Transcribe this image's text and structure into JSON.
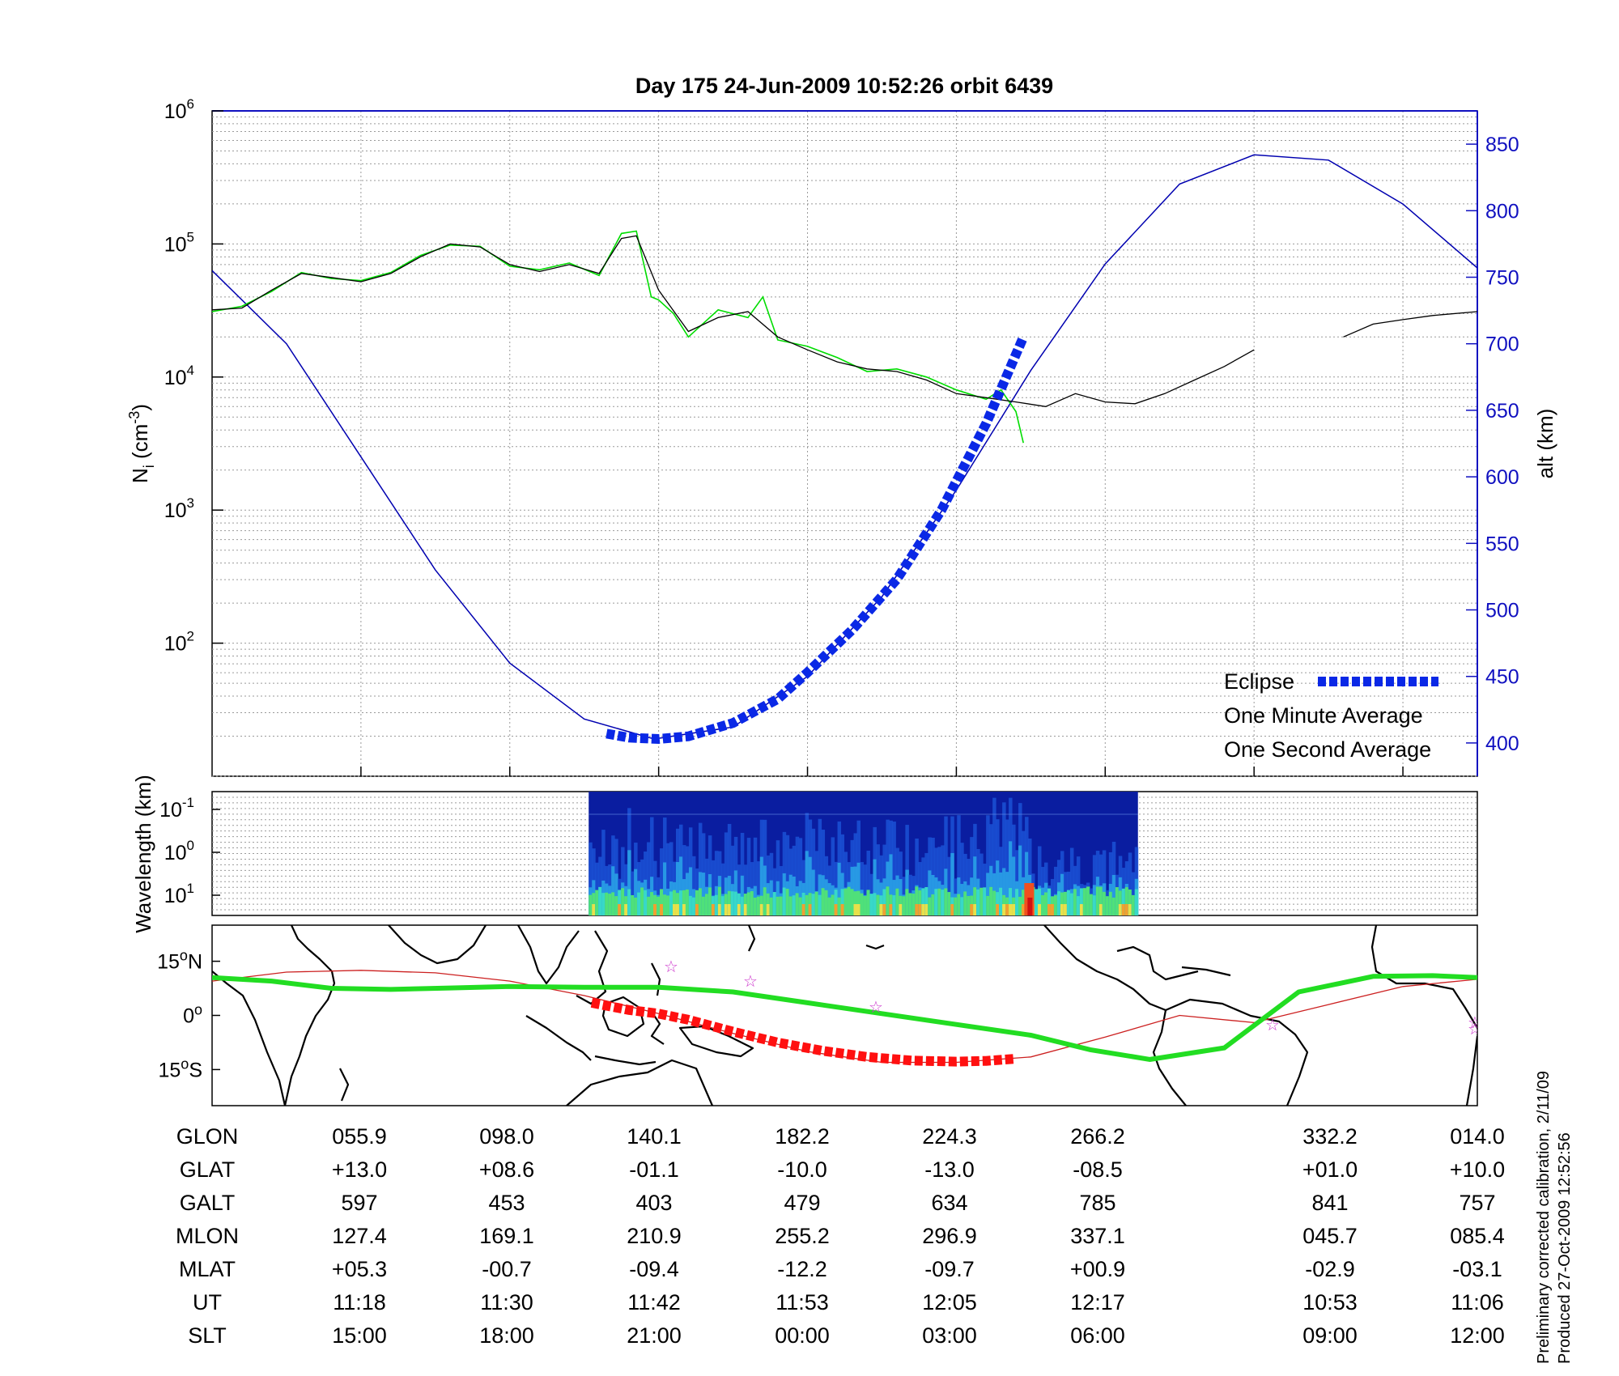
{
  "title": "Day 175  24-Jun-2009 10:52:26   orbit 6439",
  "colors": {
    "altitude": "#0000b0",
    "eclipse": "#0a28e6",
    "one_minute": "#000000",
    "one_second": "#00dd00",
    "track": "#22dd22",
    "eclipse_track": "#ff1010",
    "track_thin": "#cc2020",
    "stars": "#cc33cc",
    "right_axis": "#1010c0"
  },
  "legend": {
    "eclipse": "Eclipse",
    "one_minute": "One Minute Average",
    "one_second": "One Second Average"
  },
  "top_panel": {
    "ylabel_main": "N",
    "ylabel_sub": "i",
    "ylabel_unit_pre": " (cm",
    "ylabel_unit_exp": "-3",
    "ylabel_unit_post": ")",
    "right_label": "alt (km)",
    "y_ticks_base": [
      "10",
      "10",
      "10",
      "10",
      "10"
    ],
    "y_ticks_exp": [
      "6",
      "5",
      "4",
      "3",
      "2"
    ],
    "right_ticks": [
      "850",
      "800",
      "750",
      "700",
      "650",
      "600",
      "550",
      "500",
      "450",
      "400"
    ]
  },
  "mid_panel": {
    "ylabel": "Wavelength (km)",
    "y_ticks_base": [
      "10",
      "10",
      "10"
    ],
    "y_ticks_exp": [
      "-1",
      "0",
      "1"
    ]
  },
  "map_panel": {
    "y_ticks_value": [
      "15",
      "0",
      "15"
    ],
    "y_ticks_hemi": [
      "N",
      "",
      "S"
    ]
  },
  "table": {
    "row_labels": [
      "GLON",
      "GLAT",
      "GALT",
      "MLON",
      "MLAT",
      "UT",
      "SLT"
    ],
    "columns": [
      [
        "055.9",
        "+13.0",
        "597",
        "127.4",
        "+05.3",
        "11:18",
        "15:00"
      ],
      [
        "098.0",
        "+08.6",
        "453",
        "169.1",
        "-00.7",
        "11:30",
        "18:00"
      ],
      [
        "140.1",
        "-01.1",
        "403",
        "210.9",
        "-09.4",
        "11:42",
        "21:00"
      ],
      [
        "182.2",
        "-10.0",
        "479",
        "255.2",
        "-12.2",
        "11:53",
        "00:00"
      ],
      [
        "224.3",
        "-13.0",
        "634",
        "296.9",
        "-09.7",
        "12:05",
        "03:00"
      ],
      [
        "266.2",
        "-08.5",
        "785",
        "337.1",
        "+00.9",
        "12:17",
        "06:00"
      ],
      [
        "332.2",
        "+01.0",
        "841",
        "045.7",
        "-02.9",
        "10:53",
        "09:00"
      ],
      [
        "014.0",
        "+10.0",
        "757",
        "085.4",
        "-03.1",
        "11:06",
        "12:00"
      ]
    ]
  },
  "side_note": {
    "line1": "Preliminary corrected calibration, 2/11/09",
    "line2": "Produced 27-Oct-2009 12:52:56"
  },
  "chart_data": [
    {
      "type": "line",
      "title": "Day 175  24-Jun-2009 10:52:26   orbit 6439",
      "xlabel": "",
      "ylabel": "Ni (cm-3)",
      "yscale": "log",
      "ylim": [
        10,
        1000000
      ],
      "y2label": "alt (km)",
      "y2lim": [
        375,
        875
      ],
      "xlim": [
        0,
        8.5
      ],
      "grid": true,
      "legend_position": "bottom-right",
      "series": [
        {
          "name": "One Minute Average",
          "x": [
            0,
            0.2,
            0.4,
            0.6,
            0.8,
            1.0,
            1.2,
            1.4,
            1.6,
            1.8,
            2.0,
            2.2,
            2.4,
            2.6,
            2.75,
            2.85,
            3.0,
            3.2,
            3.4,
            3.6,
            3.8,
            4.0,
            4.2,
            4.4,
            4.6,
            4.8,
            5.0,
            5.2,
            5.4,
            5.6,
            5.8,
            6.0,
            6.2,
            6.4,
            6.6,
            6.8,
            7.0,
            7.2,
            7.4,
            7.6,
            7.8,
            8.0,
            8.2,
            8.5
          ],
          "y": [
            32000,
            33000,
            45000,
            60000,
            56000,
            52000,
            60000,
            80000,
            100000,
            95000,
            70000,
            62000,
            70000,
            60000,
            110000,
            115000,
            45000,
            22000,
            28000,
            31000,
            20000,
            16000,
            13000,
            11500,
            11000,
            9500,
            7500,
            7000,
            6500,
            6000,
            7500,
            6500,
            6300,
            7500,
            9500,
            12000,
            16000,
            null,
            null,
            20000,
            25000,
            27000,
            29000,
            31000
          ]
        },
        {
          "name": "One Second Average",
          "x": [
            0,
            0.2,
            0.4,
            0.6,
            0.8,
            1.0,
            1.2,
            1.4,
            1.6,
            1.8,
            2.0,
            2.2,
            2.4,
            2.6,
            2.75,
            2.85,
            2.95,
            3.0,
            3.1,
            3.2,
            3.4,
            3.6,
            3.7,
            3.8,
            4.0,
            4.2,
            4.4,
            4.6,
            4.8,
            5.0,
            5.2,
            5.3,
            5.4,
            5.45
          ],
          "y": [
            31000,
            34000,
            44000,
            61000,
            55000,
            53000,
            61000,
            82000,
            98000,
            96000,
            68000,
            64000,
            72000,
            58000,
            120000,
            125000,
            40000,
            38000,
            30000,
            20000,
            32000,
            28000,
            40000,
            19000,
            17000,
            14000,
            11000,
            11500,
            10000,
            8000,
            6800,
            8000,
            5500,
            3200
          ]
        },
        {
          "name": "alt (km)",
          "axis": "right",
          "x": [
            0,
            0.5,
            1.0,
            1.5,
            2.0,
            2.5,
            2.97,
            3.5,
            4.0,
            4.5,
            5.0,
            5.5,
            6.0,
            6.5,
            7.0,
            7.5,
            8.0,
            8.5
          ],
          "y": [
            755,
            700,
            615,
            530,
            460,
            418,
            403,
            412,
            450,
            510,
            590,
            680,
            760,
            820,
            842,
            838,
            805,
            757
          ]
        },
        {
          "name": "Eclipse",
          "axis": "right",
          "x": [
            2.65,
            2.8,
            3.0,
            3.2,
            3.5,
            3.8,
            4.0,
            4.3,
            4.6,
            4.9,
            5.2,
            5.45
          ],
          "y": [
            407,
            404,
            403,
            405,
            415,
            433,
            453,
            485,
            523,
            575,
            640,
            705
          ]
        }
      ]
    },
    {
      "type": "heatmap",
      "ylabel": "Wavelength (km)",
      "ytick_labels": [
        "10-1",
        "100",
        "101"
      ],
      "data_x_range": [
        2.53,
        6.22
      ]
    },
    {
      "type": "line",
      "ytick_labels": [
        "15N",
        "0",
        "15S"
      ],
      "ylim": [
        -25,
        25
      ],
      "series": [
        {
          "name": "ground track",
          "x": [
            0,
            0.4,
            0.8,
            1.2,
            1.6,
            2.0,
            2.5,
            3.0,
            3.5,
            4.0,
            4.5,
            5.0,
            5.5,
            5.9,
            6.3,
            6.8,
            7.3,
            7.8,
            8.2,
            8.5
          ],
          "y": [
            10.5,
            9.5,
            7.5,
            7.2,
            7.6,
            8.0,
            7.8,
            7.8,
            6.5,
            3.5,
            0.5,
            -2.5,
            -5.5,
            -9.5,
            -12.2,
            -9.0,
            6.5,
            10.8,
            11.0,
            10.5
          ]
        },
        {
          "name": "eclipse track",
          "x": [
            2.55,
            2.8,
            3.0,
            3.2,
            3.5,
            3.8,
            4.1,
            4.4,
            4.7,
            5.0,
            5.2,
            5.4
          ],
          "y": [
            3.5,
            1.5,
            0.5,
            -1.2,
            -4.5,
            -7.5,
            -9.8,
            -11.5,
            -12.5,
            -12.8,
            -12.6,
            -12.0
          ]
        },
        {
          "name": "thin track",
          "x": [
            0,
            0.5,
            1.0,
            1.5,
            2.0,
            2.5,
            3.0,
            3.5,
            4.0,
            4.5,
            5.0,
            5.5,
            6.0,
            6.5,
            7.0,
            7.5,
            8.0,
            8.5
          ],
          "y": [
            9.5,
            12.0,
            12.5,
            11.8,
            9.5,
            5.5,
            0.5,
            -5.0,
            -10.0,
            -13.0,
            -13.0,
            -11.5,
            -6.0,
            0.0,
            -2.0,
            3.0,
            8.0,
            10.0
          ]
        }
      ]
    }
  ]
}
